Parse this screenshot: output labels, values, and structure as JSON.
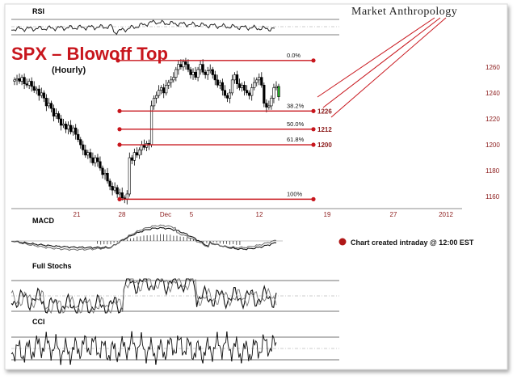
{
  "header": {
    "brand": "Market Anthropology",
    "title": "SPX – Blowoff Top",
    "subtitle": "(Hourly)"
  },
  "colors": {
    "title": "#c8161d",
    "fib_line": "#c8161d",
    "price_label": "#8b1a1a",
    "date_label": "#8b1a1a",
    "candle_up": "#ffffff",
    "candle_down": "#000000",
    "last_candle": "#22aa22"
  },
  "chart_data": [
    {
      "type": "line",
      "panel": "RSI",
      "title": "RSI",
      "grid": true
    },
    {
      "type": "candlestick",
      "panel": "price",
      "title": "SPX – Blowoff Top",
      "subtitle": "(Hourly)",
      "ylim": [
        1152,
        1268
      ],
      "y_ticks": [
        1160,
        1180,
        1200,
        1220,
        1240,
        1260
      ],
      "x_ticks": [
        "21",
        "28",
        "Dec",
        "5",
        "12",
        "19",
        "27",
        "2012"
      ],
      "fibonacci": [
        {
          "label": "0.0%",
          "price": 1265,
          "value_label": ""
        },
        {
          "label": "38.2%",
          "price": 1226,
          "value_label": "1226"
        },
        {
          "label": "50.0%",
          "price": 1212,
          "value_label": "1212"
        },
        {
          "label": "61.8%",
          "price": 1200,
          "value_label": "1200"
        },
        {
          "label": "100%",
          "price": 1158,
          "value_label": ""
        }
      ],
      "closes": [
        1250,
        1251,
        1249,
        1252,
        1247,
        1246,
        1249,
        1245,
        1242,
        1243,
        1238,
        1240,
        1236,
        1230,
        1232,
        1228,
        1222,
        1224,
        1220,
        1215,
        1216,
        1212,
        1215,
        1210,
        1213,
        1208,
        1204,
        1200,
        1196,
        1192,
        1194,
        1190,
        1186,
        1190,
        1187,
        1182,
        1177,
        1178,
        1172,
        1168,
        1165,
        1167,
        1162,
        1163,
        1159,
        1158,
        1162,
        1190,
        1188,
        1194,
        1192,
        1196,
        1200,
        1198,
        1201,
        1200,
        1230,
        1236,
        1238,
        1242,
        1244,
        1240,
        1246,
        1248,
        1250,
        1252,
        1258,
        1262,
        1260,
        1264,
        1262,
        1258,
        1254,
        1256,
        1252,
        1258,
        1262,
        1256,
        1254,
        1257,
        1258,
        1254,
        1250,
        1246,
        1248,
        1242,
        1238,
        1236,
        1240,
        1250,
        1254,
        1247,
        1244,
        1246,
        1242,
        1240,
        1238,
        1244,
        1248,
        1250,
        1252,
        1246,
        1232,
        1229,
        1230,
        1236,
        1244,
        1245,
        1237
      ]
    },
    {
      "type": "line",
      "panel": "MACD",
      "title": "MACD",
      "annotation": "Chart created intraday @ 12:00 EST"
    },
    {
      "type": "line",
      "panel": "Full Stochs",
      "title": "Full Stochs"
    },
    {
      "type": "line",
      "panel": "CCI",
      "title": "CCI"
    }
  ]
}
